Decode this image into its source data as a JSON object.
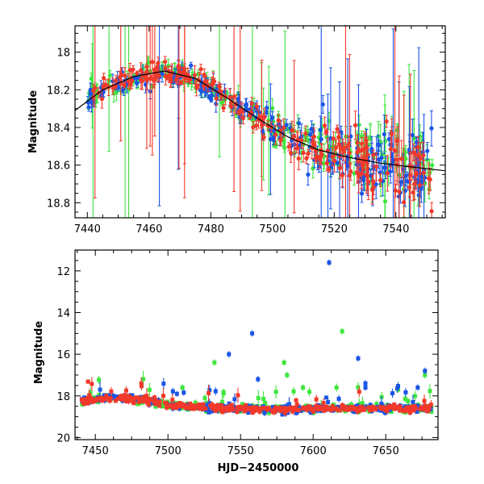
{
  "colors": {
    "green": "#3ee63e",
    "blue": "#1a55e6",
    "red": "#f2392a",
    "axis": "#000000",
    "trend": "#000000"
  },
  "chart_data": [
    {
      "type": "scatter",
      "title": "",
      "xlabel": "",
      "ylabel": "Magnitude",
      "xlim": [
        7436,
        7556
      ],
      "ylim": [
        18.88,
        17.86
      ],
      "y_inverted": true,
      "x_ticks": [
        7440,
        7460,
        7480,
        7500,
        7520,
        7540
      ],
      "y_ticks": [
        18.0,
        18.2,
        18.4,
        18.6,
        18.8
      ],
      "y_tick_labels": [
        "18",
        "18.2",
        "18.4",
        "18.6",
        "18.8"
      ],
      "grid": false,
      "legend": "none",
      "error_bars": true,
      "series_colors": [
        "#3ee63e",
        "#1a55e6",
        "#f2392a"
      ],
      "trend_line": {
        "x": [
          7436,
          7445,
          7455,
          7465,
          7475,
          7485,
          7495,
          7505,
          7515,
          7525,
          7535,
          7545,
          7556
        ],
        "y": [
          18.31,
          18.2,
          18.13,
          18.1,
          18.14,
          18.24,
          18.35,
          18.45,
          18.52,
          18.56,
          18.59,
          18.61,
          18.63
        ]
      }
    },
    {
      "type": "scatter",
      "title": "",
      "xlabel": "HJD−2450000",
      "ylabel": "Magnitude",
      "xlim": [
        7436,
        7686
      ],
      "ylim": [
        20.1,
        11.0
      ],
      "y_inverted": true,
      "x_ticks": [
        7450,
        7500,
        7550,
        7600,
        7650
      ],
      "y_ticks": [
        12,
        14,
        16,
        18,
        20
      ],
      "y_tick_labels": [
        "12",
        "14",
        "16",
        "18",
        "20"
      ],
      "grid": false,
      "legend": "none",
      "error_bars": true,
      "series_colors": [
        "#3ee63e",
        "#1a55e6",
        "#f2392a"
      ],
      "outliers": [
        {
          "x": 7611,
          "y": 11.6,
          "c": "blue"
        },
        {
          "x": 7558,
          "y": 15.0,
          "c": "blue"
        },
        {
          "x": 7542,
          "y": 16.0,
          "c": "blue"
        },
        {
          "x": 7631,
          "y": 16.2,
          "c": "blue"
        },
        {
          "x": 7562,
          "y": 17.2,
          "c": "blue"
        },
        {
          "x": 7636,
          "y": 17.4,
          "c": "blue"
        },
        {
          "x": 7636,
          "y": 17.6,
          "c": "blue"
        },
        {
          "x": 7620,
          "y": 14.9,
          "c": "green"
        },
        {
          "x": 7532,
          "y": 16.4,
          "c": "green"
        },
        {
          "x": 7580,
          "y": 16.4,
          "c": "green"
        },
        {
          "x": 7582,
          "y": 17.0,
          "c": "green"
        },
        {
          "x": 7677,
          "y": 17.0,
          "c": "green"
        },
        {
          "x": 7677,
          "y": 16.8,
          "c": "blue"
        },
        {
          "x": 7672,
          "y": 17.6,
          "c": "blue"
        },
        {
          "x": 7510,
          "y": 17.6,
          "c": "green"
        },
        {
          "x": 7593,
          "y": 17.6,
          "c": "green"
        }
      ]
    }
  ]
}
